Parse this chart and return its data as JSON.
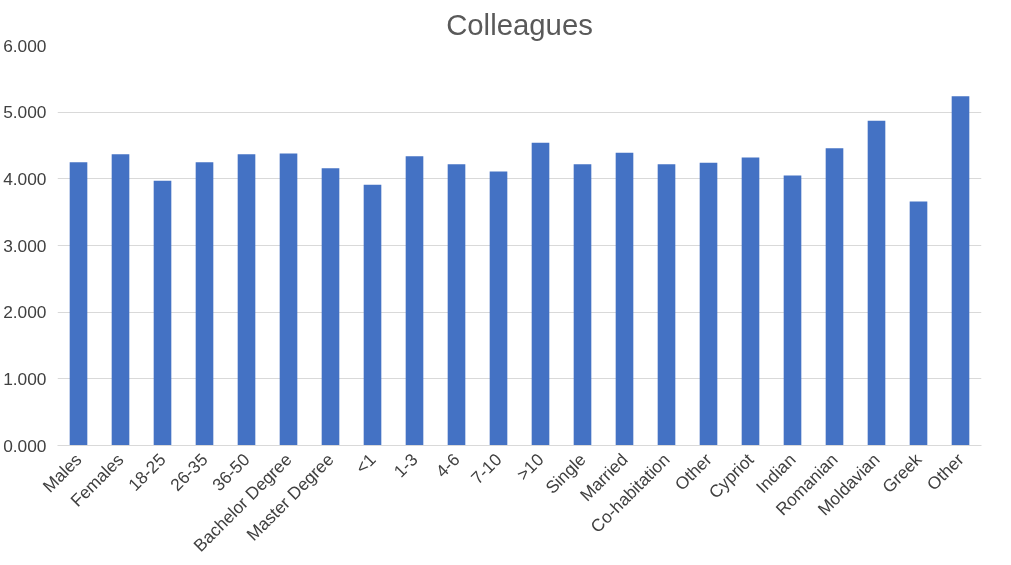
{
  "chart_data": {
    "type": "bar",
    "title": "Colleagues",
    "categories": [
      "Males",
      "Females",
      "18-25",
      "26-35",
      "36-50",
      "Bachelor Degree",
      "Master Degree",
      "<1",
      "1-3",
      "4-6",
      "7-10",
      ">10",
      "Single",
      "Married",
      "Co-habitation",
      "Other",
      "Cypriot",
      "Indian",
      "Romanian",
      "Moldavian",
      "Greek",
      "Other"
    ],
    "values": [
      4.25,
      4.37,
      3.97,
      4.25,
      4.37,
      4.38,
      4.16,
      3.91,
      4.34,
      4.22,
      4.11,
      4.54,
      4.22,
      4.39,
      4.22,
      4.24,
      4.32,
      4.05,
      4.46,
      4.87,
      3.66,
      5.24
    ],
    "color": "#4472c4",
    "ylim": [
      0,
      6
    ],
    "yticks": [
      {
        "value": 0,
        "label": "0.000"
      },
      {
        "value": 1,
        "label": "1.000"
      },
      {
        "value": 2,
        "label": "2.000"
      },
      {
        "value": 3,
        "label": "3.000"
      },
      {
        "value": 4,
        "label": "4.000"
      },
      {
        "value": 5,
        "label": "5.000"
      },
      {
        "value": 6,
        "label": "6.000"
      }
    ],
    "grid": "y"
  }
}
